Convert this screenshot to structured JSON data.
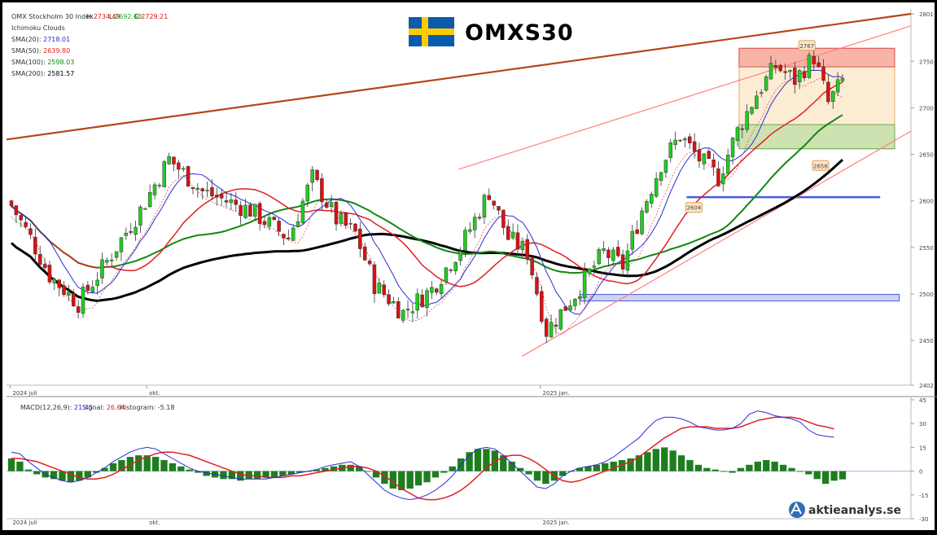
{
  "chart_data": [
    {
      "type": "candlestick",
      "title": "OMXS30",
      "brand": "aktieanalys.se",
      "legend": [
        {
          "text": "OMX Stockholm 30 Index",
          "color": "#333333"
        },
        {
          "text": "Ichimoku Clouds",
          "color": "#999999"
        },
        {
          "text": "SMA(20):",
          "value": "2718.01",
          "color": "#2b2bd6"
        },
        {
          "text": "SMA(50):",
          "value": "2639.80",
          "color": "#e02020"
        },
        {
          "text": "SMA(100):",
          "value": "2598.03",
          "color": "#118811"
        },
        {
          "text": "SMA(200):",
          "value": "2581.57",
          "color": "#000000"
        }
      ],
      "ohlc_readout": {
        "H": "2734.49",
        "L": "2692.60",
        "C": "2729.21"
      },
      "y_ticks": [
        "2801",
        "2750",
        "2700",
        "2650",
        "2600",
        "2550",
        "2500",
        "2450",
        "2402"
      ],
      "ylim": [
        2402,
        2801
      ],
      "x_ticks": [
        "2024 juli",
        "okt.",
        "2025 jan."
      ],
      "annotations": [
        "2767",
        "2656",
        "2604"
      ],
      "levels": {
        "resistance_zone": [
          2744,
          2764
        ],
        "range_zone": [
          2656,
          2764
        ],
        "support_zone": [
          2656,
          2682
        ],
        "support_line_1": 2604,
        "support_line_2": 2496
      },
      "trendlines": [
        {
          "color": "#b5451b",
          "from": [
            0,
            2666
          ],
          "to": [
            1,
            2801
          ]
        },
        {
          "color": "#ff8080",
          "from": [
            0.5,
            2634
          ],
          "to": [
            1,
            2788
          ]
        },
        {
          "color": "#ff8080",
          "from": [
            0.57,
            2433
          ],
          "to": [
            1,
            2675
          ]
        }
      ],
      "colors": {
        "up": "#22cc22",
        "down": "#dd1111",
        "sma20": "#2b2bd6",
        "sma50": "#e02020",
        "sma100": "#118811",
        "sma200": "#000000"
      }
    },
    {
      "type": "bar",
      "title": "MACD(12,26,9):",
      "macd_value": "21.45",
      "signal_label": "Signal:",
      "signal_value": "26.64",
      "histogram_label": "Histogram:",
      "histogram_value": "-5.18",
      "y_ticks": [
        "45",
        "30",
        "15",
        "0",
        "-15",
        "-30"
      ],
      "ylim": [
        -30,
        45
      ],
      "x_ticks": [
        "2024 juli",
        "okt.",
        "2025 jan."
      ],
      "macd_points": [
        12,
        11,
        6,
        2,
        -2,
        -4,
        -6,
        -7,
        -6,
        -4,
        -1,
        2,
        6,
        9,
        12,
        14,
        15,
        14,
        11,
        8,
        5,
        2,
        0,
        -1,
        -2,
        -3,
        -4,
        -5,
        -5,
        -5,
        -5,
        -4,
        -3,
        -2,
        -1,
        0,
        1,
        3,
        4,
        5,
        6,
        3,
        -2,
        -7,
        -12,
        -15,
        -17,
        -18,
        -17,
        -15,
        -12,
        -8,
        -3,
        4,
        10,
        14,
        15,
        14,
        10,
        5,
        0,
        -5,
        -10,
        -11,
        -8,
        -3,
        0,
        2,
        3,
        4,
        6,
        9,
        13,
        17,
        21,
        27,
        32,
        34,
        34,
        33,
        31,
        28,
        27,
        26,
        26,
        27,
        30,
        36,
        38,
        37,
        35,
        34,
        33,
        31,
        26,
        23,
        22,
        21.45
      ],
      "signal_points": [
        8,
        8,
        7,
        6,
        4,
        2,
        0,
        -2,
        -4,
        -5,
        -5,
        -4,
        -2,
        1,
        4,
        7,
        9,
        11,
        12,
        12,
        11,
        10,
        8,
        6,
        4,
        2,
        0,
        -2,
        -3,
        -3,
        -4,
        -4,
        -4,
        -3,
        -3,
        -2,
        -1,
        0,
        1,
        2,
        3,
        3,
        2,
        0,
        -3,
        -7,
        -11,
        -14,
        -17,
        -18,
        -18,
        -17,
        -15,
        -12,
        -8,
        -3,
        2,
        6,
        9,
        10,
        10,
        8,
        5,
        1,
        -3,
        -6,
        -7,
        -6,
        -4,
        -2,
        0,
        2,
        4,
        6,
        9,
        13,
        17,
        21,
        24,
        27,
        28,
        28,
        28,
        27,
        27,
        27,
        28,
        30,
        32,
        33,
        34,
        34,
        34,
        33,
        31,
        29,
        28,
        26.64
      ],
      "histogram": [
        8,
        6,
        1,
        -2,
        -4,
        -5,
        -6,
        -7,
        -6,
        -4,
        -1,
        2,
        5,
        7,
        9,
        10,
        10,
        9,
        7,
        5,
        3,
        1,
        -1,
        -3,
        -4,
        -5,
        -5,
        -6,
        -5,
        -5,
        -4,
        -4,
        -3,
        -2,
        -1,
        0,
        1,
        2,
        3,
        4,
        4,
        3,
        0,
        -4,
        -8,
        -11,
        -12,
        -11,
        -9,
        -7,
        -4,
        -1,
        3,
        8,
        12,
        14,
        14,
        13,
        10,
        6,
        2,
        -2,
        -6,
        -8,
        -6,
        -3,
        0,
        2,
        3,
        4,
        5,
        6,
        7,
        8,
        10,
        12,
        14,
        15,
        13,
        10,
        7,
        4,
        2,
        1,
        0,
        -1,
        2,
        4,
        6,
        7,
        6,
        4,
        2,
        0,
        -2,
        -5,
        -8,
        -6,
        -5.18
      ]
    }
  ]
}
